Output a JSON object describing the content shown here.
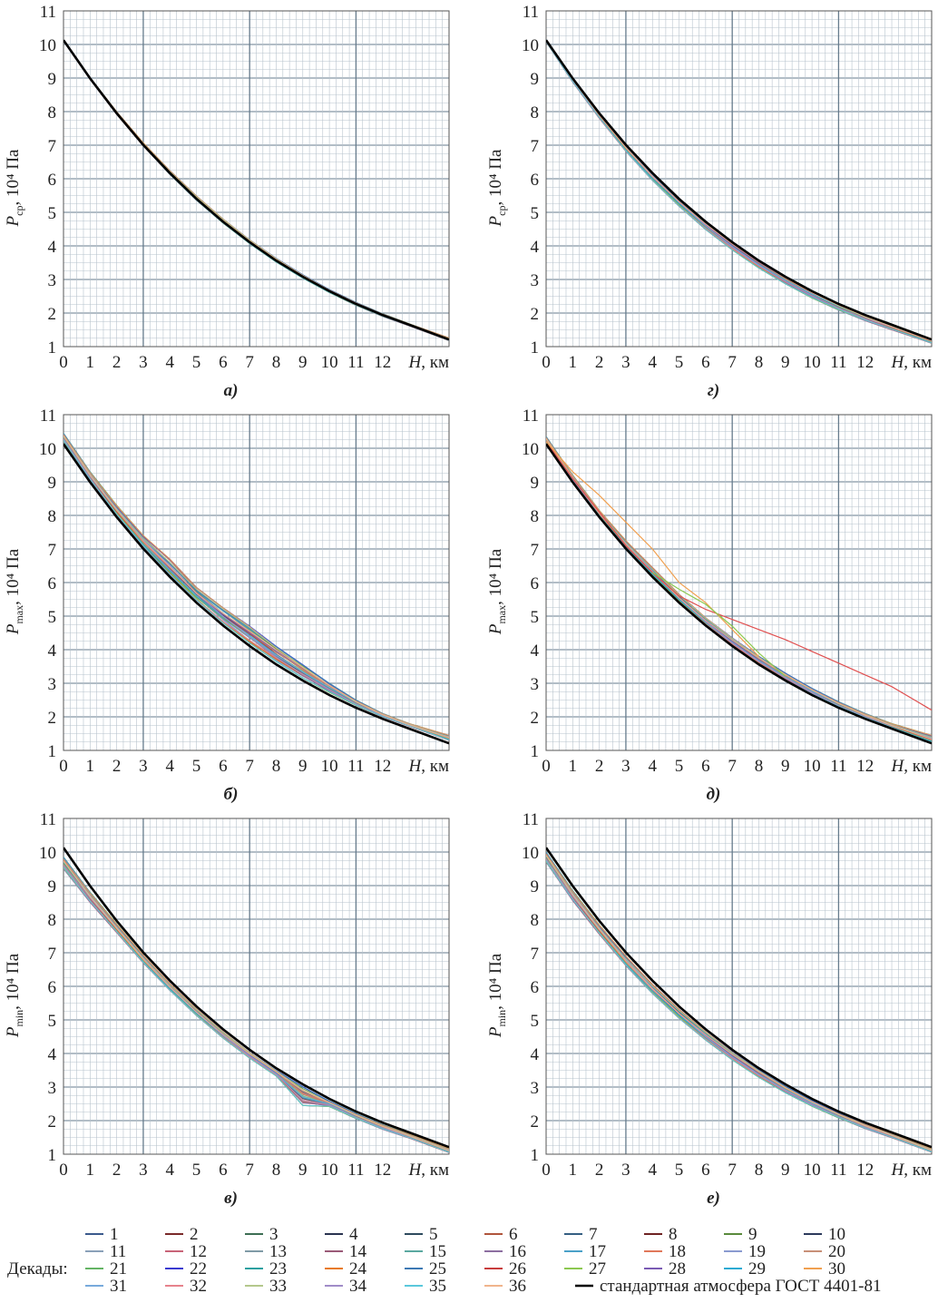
{
  "colors": {
    "grid_minor": "#b7c3cd",
    "grid_major": "#667b8c",
    "axis": "#555555",
    "standard_line": "#000000"
  },
  "common": {
    "x_ticks": [
      "0",
      "1",
      "2",
      "3",
      "4",
      "5",
      "6",
      "7",
      "8",
      "9",
      "10",
      "11",
      "12"
    ],
    "y_ticks": [
      "1",
      "2",
      "3",
      "4",
      "5",
      "6",
      "7",
      "8",
      "9",
      "10",
      "11"
    ],
    "x_label_var": "H",
    "x_label_unit": ", км",
    "y_label_unit": ", 10⁴ Па"
  },
  "legend": {
    "title": "Декады:",
    "standard_label": "стандартная атмосфера ГОСТ 4401-81",
    "items": [
      {
        "label": "1",
        "color": "#3b5a8c"
      },
      {
        "label": "2",
        "color": "#7a2a2a"
      },
      {
        "label": "3",
        "color": "#3d6e54"
      },
      {
        "label": "4",
        "color": "#2a3350"
      },
      {
        "label": "5",
        "color": "#2e4a5e"
      },
      {
        "label": "6",
        "color": "#b0553c"
      },
      {
        "label": "7",
        "color": "#355f82"
      },
      {
        "label": "8",
        "color": "#6e2323"
      },
      {
        "label": "9",
        "color": "#5a8a3c"
      },
      {
        "label": "10",
        "color": "#2c3a5c"
      },
      {
        "label": "11",
        "color": "#8aa0b8"
      },
      {
        "label": "12",
        "color": "#c86478"
      },
      {
        "label": "13",
        "color": "#7f9aa6"
      },
      {
        "label": "14",
        "color": "#9a5a78"
      },
      {
        "label": "15",
        "color": "#5aa8a0"
      },
      {
        "label": "16",
        "color": "#8c6ea0"
      },
      {
        "label": "17",
        "color": "#4aa0c8"
      },
      {
        "label": "18",
        "color": "#e0785a"
      },
      {
        "label": "19",
        "color": "#8a9ad0"
      },
      {
        "label": "20",
        "color": "#c89078"
      },
      {
        "label": "21",
        "color": "#64b464"
      },
      {
        "label": "22",
        "color": "#3a3ad0"
      },
      {
        "label": "23",
        "color": "#2aa0a0"
      },
      {
        "label": "24",
        "color": "#e87a1e"
      },
      {
        "label": "25",
        "color": "#3c78b4"
      },
      {
        "label": "26",
        "color": "#c83c3c"
      },
      {
        "label": "27",
        "color": "#8cc850"
      },
      {
        "label": "28",
        "color": "#7a5ab4"
      },
      {
        "label": "29",
        "color": "#28aad2"
      },
      {
        "label": "30",
        "color": "#f0a050"
      },
      {
        "label": "31",
        "color": "#78aadc"
      },
      {
        "label": "32",
        "color": "#e6828c"
      },
      {
        "label": "33",
        "color": "#b4c88c"
      },
      {
        "label": "34",
        "color": "#a08cc8"
      },
      {
        "label": "35",
        "color": "#5ac8dc"
      },
      {
        "label": "36",
        "color": "#f0b48c"
      }
    ]
  },
  "chart_data": [
    {
      "id": "a",
      "panel_label": "а)",
      "type": "line",
      "ylabel_sub": "ср",
      "xlim": [
        0,
        14.5
      ],
      "ylim": [
        1,
        11
      ],
      "x": [
        0,
        1,
        2,
        3,
        4,
        5,
        6,
        7,
        8,
        9,
        10,
        11,
        12,
        13,
        14.5
      ],
      "standard": [
        10.13,
        8.99,
        7.95,
        7.01,
        6.17,
        5.4,
        4.72,
        4.11,
        3.56,
        3.08,
        2.65,
        2.27,
        1.94,
        1.65,
        1.21
      ],
      "band": {
        "upper": [
          10.15,
          9.02,
          8.0,
          7.07,
          6.24,
          5.48,
          4.8,
          4.18,
          3.63,
          3.14,
          2.7,
          2.32,
          1.98,
          1.68,
          1.26
        ],
        "lower": [
          10.1,
          8.96,
          7.92,
          6.98,
          6.13,
          5.36,
          4.68,
          4.07,
          3.52,
          3.04,
          2.61,
          2.23,
          1.9,
          1.62,
          1.18
        ]
      }
    },
    {
      "id": "b",
      "panel_label": "б)",
      "type": "line",
      "ylabel_sub": "max",
      "xlim": [
        0,
        14.5
      ],
      "ylim": [
        1,
        11
      ],
      "x": [
        0,
        1,
        2,
        3,
        4,
        5,
        6,
        7,
        8,
        9,
        10,
        11,
        12,
        13,
        14.5
      ],
      "standard": [
        10.13,
        8.99,
        7.95,
        7.01,
        6.17,
        5.4,
        4.72,
        4.11,
        3.56,
        3.08,
        2.65,
        2.27,
        1.94,
        1.65,
        1.21
      ],
      "band": {
        "upper": [
          10.45,
          9.3,
          8.3,
          7.4,
          6.7,
          5.85,
          5.25,
          4.7,
          4.1,
          3.55,
          3.0,
          2.5,
          2.1,
          1.8,
          1.45
        ],
        "lower": [
          10.2,
          9.05,
          8.0,
          7.08,
          6.24,
          5.48,
          4.8,
          4.2,
          3.65,
          3.16,
          2.73,
          2.34,
          2.0,
          1.72,
          1.3
        ]
      }
    },
    {
      "id": "v",
      "panel_label": "в)",
      "type": "line",
      "ylabel_sub": "min",
      "xlim": [
        0,
        14.5
      ],
      "ylim": [
        1,
        11
      ],
      "x": [
        0,
        1,
        2,
        3,
        4,
        5,
        6,
        7,
        8,
        9,
        10,
        11,
        12,
        13,
        14.5
      ],
      "standard": [
        10.13,
        8.99,
        7.95,
        7.01,
        6.17,
        5.4,
        4.72,
        4.11,
        3.56,
        3.08,
        2.65,
        2.27,
        1.94,
        1.65,
        1.21
      ],
      "band": {
        "upper": [
          9.85,
          8.8,
          7.85,
          6.92,
          6.08,
          5.32,
          4.64,
          4.03,
          3.49,
          3.01,
          2.58,
          2.21,
          1.88,
          1.6,
          1.16
        ],
        "lower": [
          9.5,
          8.5,
          7.6,
          6.7,
          5.88,
          5.13,
          4.46,
          3.86,
          3.33,
          2.45,
          2.42,
          2.06,
          1.74,
          1.48,
          1.05
        ]
      }
    },
    {
      "id": "g",
      "panel_label": "г)",
      "type": "line",
      "ylabel_sub": "ср",
      "xlim": [
        0,
        14.5
      ],
      "ylim": [
        1,
        11
      ],
      "x": [
        0,
        1,
        2,
        3,
        4,
        5,
        6,
        7,
        8,
        9,
        10,
        11,
        12,
        13,
        14.5
      ],
      "standard": [
        10.13,
        8.99,
        7.95,
        7.01,
        6.17,
        5.4,
        4.72,
        4.11,
        3.56,
        3.08,
        2.65,
        2.27,
        1.94,
        1.65,
        1.21
      ],
      "band": {
        "upper": [
          10.15,
          9.0,
          7.97,
          7.03,
          6.19,
          5.42,
          4.74,
          4.13,
          3.58,
          3.1,
          2.67,
          2.29,
          1.96,
          1.67,
          1.23
        ],
        "lower": [
          10.08,
          8.88,
          7.8,
          6.82,
          5.95,
          5.18,
          4.49,
          3.88,
          3.34,
          2.87,
          2.45,
          2.09,
          1.77,
          1.5,
          1.1
        ]
      }
    },
    {
      "id": "d",
      "panel_label": "д)",
      "type": "line",
      "ylabel_sub": "max",
      "xlim": [
        0,
        14.5
      ],
      "ylim": [
        1,
        11
      ],
      "x": [
        0,
        1,
        2,
        3,
        4,
        5,
        6,
        7,
        8,
        9,
        10,
        11,
        12,
        13,
        14.5
      ],
      "standard": [
        10.13,
        8.99,
        7.95,
        7.01,
        6.17,
        5.4,
        4.72,
        4.11,
        3.56,
        3.08,
        2.65,
        2.27,
        1.94,
        1.65,
        1.21
      ],
      "band": {
        "upper": [
          10.35,
          9.2,
          8.15,
          7.25,
          6.45,
          5.65,
          4.95,
          4.35,
          3.8,
          3.3,
          2.85,
          2.45,
          2.1,
          1.8,
          1.45
        ],
        "lower": [
          10.15,
          9.0,
          7.97,
          7.03,
          6.19,
          5.42,
          4.74,
          4.13,
          3.58,
          3.1,
          2.67,
          2.29,
          1.96,
          1.67,
          1.23
        ]
      },
      "outliers": [
        {
          "name": "26",
          "color": "#e05050",
          "x": [
            0,
            1,
            2,
            3,
            4,
            5,
            6,
            7,
            8,
            9,
            10,
            11,
            12,
            13,
            14.5
          ],
          "y": [
            10.2,
            9.1,
            8.1,
            7.1,
            6.3,
            5.6,
            5.2,
            4.9,
            4.6,
            4.3,
            3.95,
            3.6,
            3.25,
            2.9,
            2.2
          ]
        },
        {
          "name": "30",
          "color": "#f0a050",
          "x": [
            0,
            1,
            2,
            3,
            4,
            5,
            6,
            7,
            8
          ],
          "y": [
            10.2,
            9.3,
            8.6,
            7.8,
            7.0,
            6.0,
            5.4,
            4.6,
            3.8
          ]
        },
        {
          "name": "27",
          "color": "#8cc850",
          "x": [
            4,
            5,
            6,
            7,
            8,
            9
          ],
          "y": [
            6.3,
            5.8,
            5.35,
            4.7,
            3.9,
            3.2
          ]
        }
      ]
    },
    {
      "id": "e",
      "panel_label": "е)",
      "type": "line",
      "ylabel_sub": "min",
      "xlim": [
        0,
        14.5
      ],
      "ylim": [
        1,
        11
      ],
      "x": [
        0,
        1,
        2,
        3,
        4,
        5,
        6,
        7,
        8,
        9,
        10,
        11,
        12,
        13,
        14.5
      ],
      "standard": [
        10.13,
        8.99,
        7.95,
        7.01,
        6.17,
        5.4,
        4.72,
        4.11,
        3.56,
        3.08,
        2.65,
        2.27,
        1.94,
        1.65,
        1.21
      ],
      "band": {
        "upper": [
          10.0,
          8.85,
          7.83,
          6.9,
          6.06,
          5.31,
          4.64,
          4.04,
          3.5,
          3.02,
          2.6,
          2.23,
          1.9,
          1.62,
          1.16
        ],
        "lower": [
          9.7,
          8.55,
          7.55,
          6.62,
          5.79,
          5.05,
          4.4,
          3.81,
          3.29,
          2.83,
          2.43,
          2.08,
          1.76,
          1.49,
          1.06
        ]
      }
    }
  ]
}
